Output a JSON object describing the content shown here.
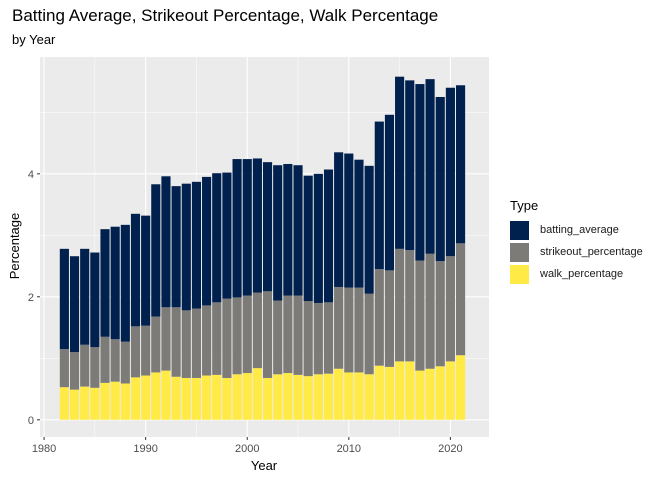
{
  "chart_data": {
    "type": "bar",
    "stacked": true,
    "title": "Batting Average, Strikeout Percentage, Walk Percentage",
    "subtitle": "by Year",
    "xlabel": "Year",
    "ylabel": "Percentage",
    "xlim": [
      1979.6,
      2023.8
    ],
    "ylim": [
      -0.28,
      5.9
    ],
    "x_ticks": [
      1980,
      1990,
      2000,
      2010,
      2020
    ],
    "y_ticks": [
      0,
      2,
      4
    ],
    "legend_title": "Type",
    "legend_position": "right",
    "grid": true,
    "colors": {
      "batting_average": "#00204d",
      "strikeout_percentage": "#7c7b78",
      "walk_percentage": "#ffea46",
      "panel_background": "#ebebeb",
      "grid_major": "#ffffff"
    },
    "x": [
      1982,
      1983,
      1984,
      1985,
      1986,
      1987,
      1988,
      1989,
      1990,
      1991,
      1992,
      1993,
      1994,
      1995,
      1996,
      1997,
      1998,
      1999,
      2000,
      2001,
      2002,
      2003,
      2004,
      2005,
      2006,
      2007,
      2008,
      2009,
      2010,
      2011,
      2012,
      2013,
      2014,
      2015,
      2016,
      2017,
      2018,
      2019,
      2020,
      2021
    ],
    "series": [
      {
        "name": "walk_percentage",
        "values": [
          0.53,
          0.49,
          0.54,
          0.52,
          0.6,
          0.62,
          0.59,
          0.69,
          0.72,
          0.77,
          0.8,
          0.7,
          0.68,
          0.68,
          0.72,
          0.73,
          0.68,
          0.74,
          0.76,
          0.84,
          0.68,
          0.74,
          0.76,
          0.73,
          0.71,
          0.74,
          0.75,
          0.83,
          0.77,
          0.77,
          0.74,
          0.88,
          0.86,
          0.95,
          0.95,
          0.8,
          0.83,
          0.87,
          0.95,
          1.05
        ]
      },
      {
        "name": "strikeout_percentage",
        "values": [
          0.62,
          0.61,
          0.68,
          0.66,
          0.75,
          0.69,
          0.68,
          0.83,
          0.81,
          0.91,
          1.03,
          1.13,
          1.1,
          1.13,
          1.14,
          1.18,
          1.29,
          1.25,
          1.26,
          1.23,
          1.41,
          1.2,
          1.26,
          1.29,
          1.22,
          1.16,
          1.16,
          1.33,
          1.38,
          1.38,
          1.31,
          1.57,
          1.57,
          1.83,
          1.81,
          1.79,
          1.87,
          1.71,
          1.71,
          1.82
        ]
      },
      {
        "name": "batting_average",
        "values": [
          1.63,
          1.56,
          1.56,
          1.54,
          1.75,
          1.83,
          1.9,
          1.83,
          1.79,
          2.15,
          2.13,
          1.97,
          2.06,
          2.06,
          2.09,
          2.1,
          2.05,
          2.25,
          2.22,
          2.18,
          2.1,
          2.2,
          2.14,
          2.12,
          2.04,
          2.1,
          2.16,
          2.19,
          2.18,
          2.08,
          2.08,
          2.4,
          2.53,
          2.8,
          2.76,
          2.87,
          2.84,
          2.67,
          2.74,
          2.57
        ]
      }
    ]
  }
}
